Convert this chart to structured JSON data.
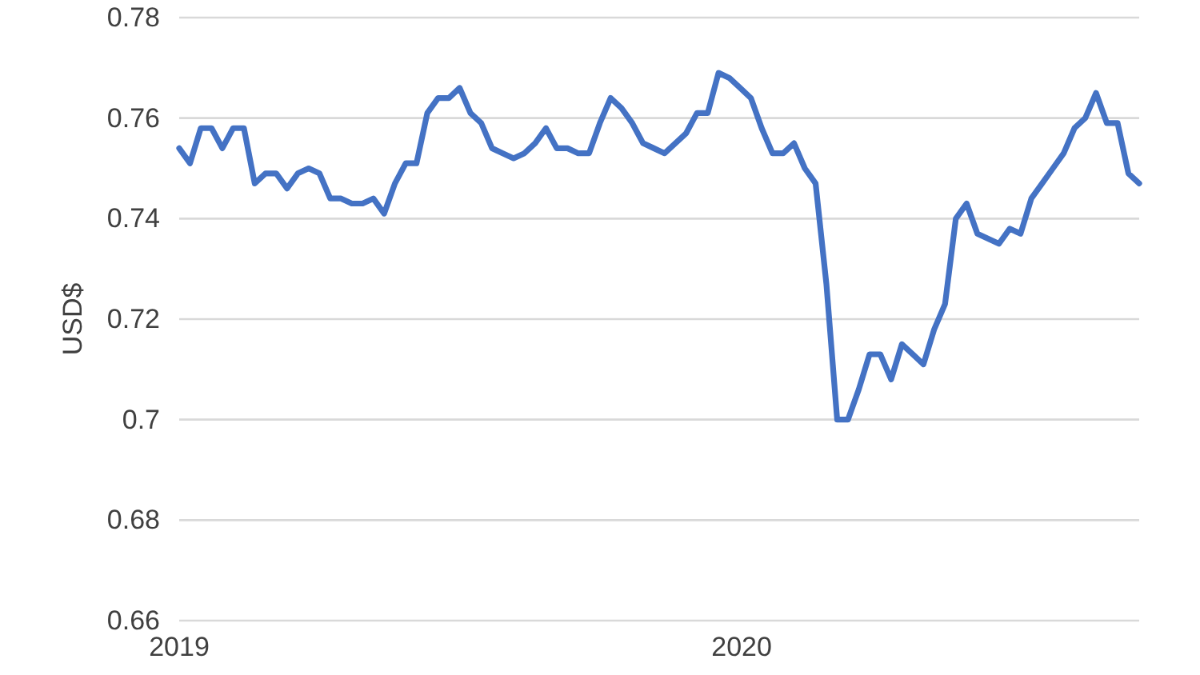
{
  "chart_data": {
    "type": "line",
    "ylabel": "USD$",
    "x": [
      "2019-01-01",
      "2019-01-08",
      "2019-01-15",
      "2019-01-22",
      "2019-01-29",
      "2019-02-05",
      "2019-02-12",
      "2019-02-19",
      "2019-02-26",
      "2019-03-05",
      "2019-03-12",
      "2019-03-19",
      "2019-03-26",
      "2019-04-02",
      "2019-04-09",
      "2019-04-16",
      "2019-04-23",
      "2019-04-30",
      "2019-05-07",
      "2019-05-14",
      "2019-05-21",
      "2019-05-28",
      "2019-06-04",
      "2019-06-11",
      "2019-06-18",
      "2019-06-25",
      "2019-07-02",
      "2019-07-09",
      "2019-07-16",
      "2019-07-23",
      "2019-07-30",
      "2019-08-06",
      "2019-08-13",
      "2019-08-20",
      "2019-08-27",
      "2019-09-03",
      "2019-09-10",
      "2019-09-17",
      "2019-09-24",
      "2019-10-01",
      "2019-10-08",
      "2019-10-15",
      "2019-10-22",
      "2019-10-29",
      "2019-11-05",
      "2019-11-12",
      "2019-11-19",
      "2019-11-26",
      "2019-12-03",
      "2019-12-10",
      "2019-12-17",
      "2019-12-24",
      "2019-12-31",
      "2020-01-07",
      "2020-01-14",
      "2020-01-21",
      "2020-01-28",
      "2020-02-04",
      "2020-02-11",
      "2020-02-18",
      "2020-02-25",
      "2020-03-03",
      "2020-03-10",
      "2020-03-17",
      "2020-03-24",
      "2020-03-31",
      "2020-04-07",
      "2020-04-14",
      "2020-04-21",
      "2020-04-28",
      "2020-05-05",
      "2020-05-12",
      "2020-05-19",
      "2020-05-26",
      "2020-06-02",
      "2020-06-09",
      "2020-06-16",
      "2020-06-23",
      "2020-06-30",
      "2020-07-07",
      "2020-07-14",
      "2020-07-21",
      "2020-07-28",
      "2020-08-04",
      "2020-08-11",
      "2020-08-18",
      "2020-08-25",
      "2020-09-01",
      "2020-09-08",
      "2020-09-15"
    ],
    "series": [
      {
        "color": "#4472c4",
        "values": [
          0.754,
          0.751,
          0.758,
          0.758,
          0.754,
          0.758,
          0.758,
          0.747,
          0.749,
          0.749,
          0.746,
          0.749,
          0.75,
          0.749,
          0.744,
          0.744,
          0.743,
          0.743,
          0.744,
          0.741,
          0.747,
          0.751,
          0.751,
          0.761,
          0.764,
          0.764,
          0.766,
          0.761,
          0.759,
          0.754,
          0.753,
          0.752,
          0.753,
          0.755,
          0.758,
          0.754,
          0.754,
          0.753,
          0.753,
          0.759,
          0.764,
          0.762,
          0.759,
          0.755,
          0.754,
          0.753,
          0.755,
          0.757,
          0.761,
          0.761,
          0.769,
          0.768,
          0.766,
          0.764,
          0.758,
          0.753,
          0.753,
          0.755,
          0.75,
          0.747,
          0.727,
          0.7,
          0.7,
          0.706,
          0.713,
          0.713,
          0.708,
          0.715,
          0.713,
          0.711,
          0.718,
          0.723,
          0.74,
          0.743,
          0.737,
          0.736,
          0.735,
          0.738,
          0.737,
          0.744,
          0.747,
          0.75,
          0.753,
          0.758,
          0.76,
          0.765,
          0.759,
          0.759,
          0.749,
          0.747
        ]
      }
    ],
    "xlim": [
      "2019-01-01",
      "2020-09-15"
    ],
    "xticks": [
      {
        "value": "2019-01-01",
        "label": "2019"
      },
      {
        "value": "2020-01-01",
        "label": "2020"
      }
    ],
    "ylim": [
      0.66,
      0.78
    ],
    "yticks": [
      0.66,
      0.68,
      0.7,
      0.72,
      0.74,
      0.76,
      0.78
    ],
    "grid": "y",
    "marker": "none",
    "line_style": "solid"
  }
}
